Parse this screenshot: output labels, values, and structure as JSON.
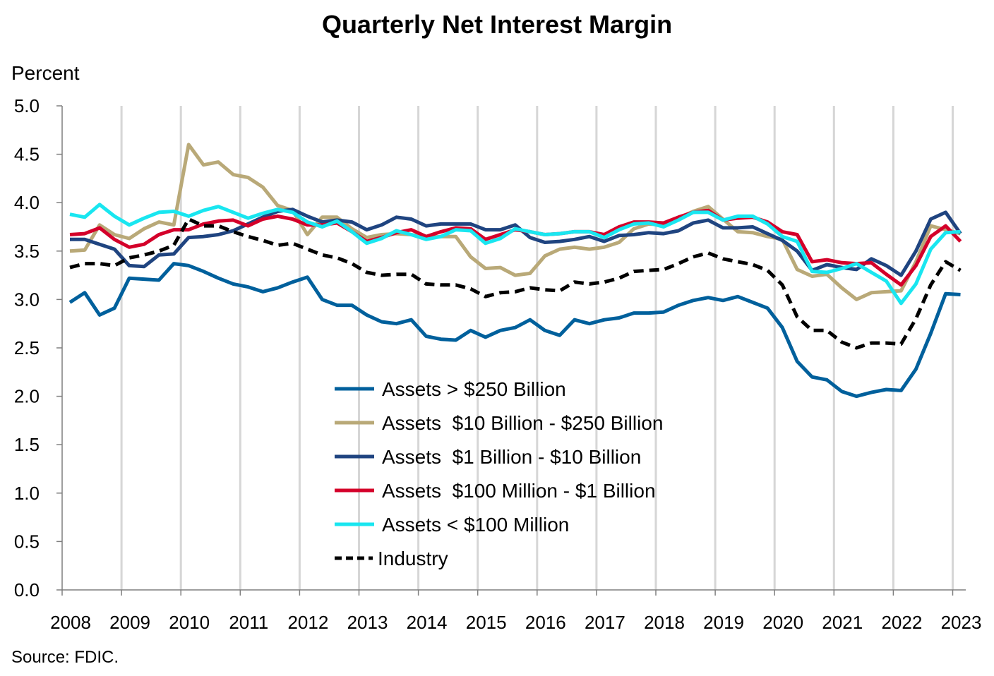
{
  "chart_data": {
    "type": "line",
    "title": "Quarterly Net Interest Margin",
    "ylabel": "Percent",
    "xlabel": "",
    "source": "Source: FDIC.",
    "ylim": [
      0,
      5
    ],
    "yticks": [
      "0.0",
      "0.5",
      "1.0",
      "1.5",
      "2.0",
      "2.5",
      "3.0",
      "3.5",
      "4.0",
      "4.5",
      "5.0"
    ],
    "xticks": [
      "2008",
      "2009",
      "2010",
      "2011",
      "2012",
      "2013",
      "2014",
      "2015",
      "2016",
      "2017",
      "2018",
      "2019",
      "2020",
      "2021",
      "2022",
      "2023"
    ],
    "grid": "vertical",
    "legend_position": "lower-center",
    "x_start_year": 2008,
    "quarters_per_year": 4,
    "series": [
      {
        "name": "Assets > $250 Billion",
        "color": "#00609c",
        "dash": false,
        "values": [
          2.97,
          3.07,
          2.84,
          2.91,
          3.22,
          3.21,
          3.2,
          3.37,
          3.35,
          3.29,
          3.22,
          3.16,
          3.13,
          3.08,
          3.12,
          3.18,
          3.23,
          3.0,
          2.94,
          2.94,
          2.84,
          2.77,
          2.75,
          2.79,
          2.62,
          2.59,
          2.58,
          2.68,
          2.61,
          2.68,
          2.71,
          2.79,
          2.68,
          2.63,
          2.79,
          2.75,
          2.79,
          2.81,
          2.86,
          2.86,
          2.87,
          2.94,
          2.99,
          3.02,
          2.99,
          3.03,
          2.97,
          2.91,
          2.71,
          2.36,
          2.2,
          2.17,
          2.05,
          2.0,
          2.04,
          2.07,
          2.06,
          2.28,
          2.65,
          3.06,
          3.05
        ]
      },
      {
        "name": "Assets  $10 Billion - $250 Billion",
        "color": "#b9a978",
        "dash": false,
        "values": [
          3.5,
          3.51,
          3.77,
          3.67,
          3.63,
          3.73,
          3.8,
          3.77,
          4.6,
          4.39,
          4.42,
          4.29,
          4.26,
          4.16,
          3.97,
          3.92,
          3.67,
          3.85,
          3.85,
          3.73,
          3.64,
          3.67,
          3.68,
          3.67,
          3.64,
          3.65,
          3.65,
          3.44,
          3.32,
          3.33,
          3.25,
          3.27,
          3.45,
          3.52,
          3.54,
          3.52,
          3.54,
          3.59,
          3.73,
          3.78,
          3.77,
          3.84,
          3.91,
          3.96,
          3.83,
          3.7,
          3.69,
          3.65,
          3.62,
          3.31,
          3.24,
          3.26,
          3.12,
          3.0,
          3.07,
          3.08,
          3.09,
          3.39,
          3.76,
          3.72,
          3.68
        ]
      },
      {
        "name": "Assets  $1 Billion - $10 Billion",
        "color": "#1f4480",
        "dash": false,
        "values": [
          3.62,
          3.62,
          3.57,
          3.52,
          3.35,
          3.34,
          3.46,
          3.47,
          3.64,
          3.65,
          3.67,
          3.71,
          3.78,
          3.85,
          3.91,
          3.93,
          3.86,
          3.8,
          3.82,
          3.8,
          3.72,
          3.77,
          3.85,
          3.83,
          3.76,
          3.78,
          3.78,
          3.78,
          3.72,
          3.72,
          3.77,
          3.64,
          3.59,
          3.6,
          3.62,
          3.65,
          3.6,
          3.66,
          3.67,
          3.69,
          3.68,
          3.71,
          3.79,
          3.82,
          3.74,
          3.74,
          3.75,
          3.68,
          3.61,
          3.5,
          3.3,
          3.36,
          3.33,
          3.31,
          3.42,
          3.35,
          3.25,
          3.5,
          3.83,
          3.9,
          3.68
        ]
      },
      {
        "name": "Assets  $100 Million - $1 Billion",
        "color": "#d4002a",
        "dash": false,
        "values": [
          3.67,
          3.68,
          3.74,
          3.62,
          3.54,
          3.57,
          3.67,
          3.72,
          3.72,
          3.78,
          3.81,
          3.82,
          3.76,
          3.83,
          3.86,
          3.83,
          3.77,
          3.77,
          3.79,
          3.7,
          3.6,
          3.64,
          3.69,
          3.72,
          3.65,
          3.7,
          3.74,
          3.73,
          3.62,
          3.67,
          3.72,
          3.7,
          3.67,
          3.68,
          3.7,
          3.7,
          3.67,
          3.75,
          3.8,
          3.8,
          3.79,
          3.85,
          3.9,
          3.92,
          3.82,
          3.84,
          3.85,
          3.8,
          3.7,
          3.67,
          3.39,
          3.41,
          3.38,
          3.37,
          3.38,
          3.26,
          3.15,
          3.35,
          3.65,
          3.76,
          3.6
        ]
      },
      {
        "name": "Assets < $100 Million",
        "color": "#19e6f0",
        "dash": false,
        "values": [
          3.88,
          3.85,
          3.98,
          3.86,
          3.77,
          3.84,
          3.9,
          3.91,
          3.86,
          3.92,
          3.96,
          3.9,
          3.84,
          3.89,
          3.93,
          3.9,
          3.8,
          3.75,
          3.81,
          3.7,
          3.58,
          3.63,
          3.71,
          3.67,
          3.62,
          3.65,
          3.72,
          3.71,
          3.58,
          3.63,
          3.73,
          3.7,
          3.67,
          3.68,
          3.7,
          3.7,
          3.64,
          3.72,
          3.78,
          3.79,
          3.75,
          3.82,
          3.9,
          3.9,
          3.82,
          3.86,
          3.86,
          3.78,
          3.65,
          3.6,
          3.29,
          3.28,
          3.32,
          3.37,
          3.28,
          3.19,
          2.96,
          3.16,
          3.52,
          3.69,
          3.7
        ]
      },
      {
        "name": "Industry",
        "color": "#000000",
        "dash": true,
        "values": [
          3.33,
          3.37,
          3.37,
          3.35,
          3.43,
          3.46,
          3.5,
          3.56,
          3.83,
          3.76,
          3.76,
          3.7,
          3.65,
          3.61,
          3.56,
          3.58,
          3.52,
          3.46,
          3.43,
          3.37,
          3.28,
          3.25,
          3.26,
          3.26,
          3.16,
          3.15,
          3.15,
          3.11,
          3.03,
          3.07,
          3.08,
          3.12,
          3.1,
          3.09,
          3.18,
          3.16,
          3.18,
          3.22,
          3.29,
          3.3,
          3.31,
          3.37,
          3.44,
          3.48,
          3.42,
          3.39,
          3.36,
          3.3,
          3.15,
          2.82,
          2.68,
          2.68,
          2.56,
          2.5,
          2.55,
          2.55,
          2.54,
          2.8,
          3.15,
          3.39,
          3.3
        ]
      }
    ]
  }
}
